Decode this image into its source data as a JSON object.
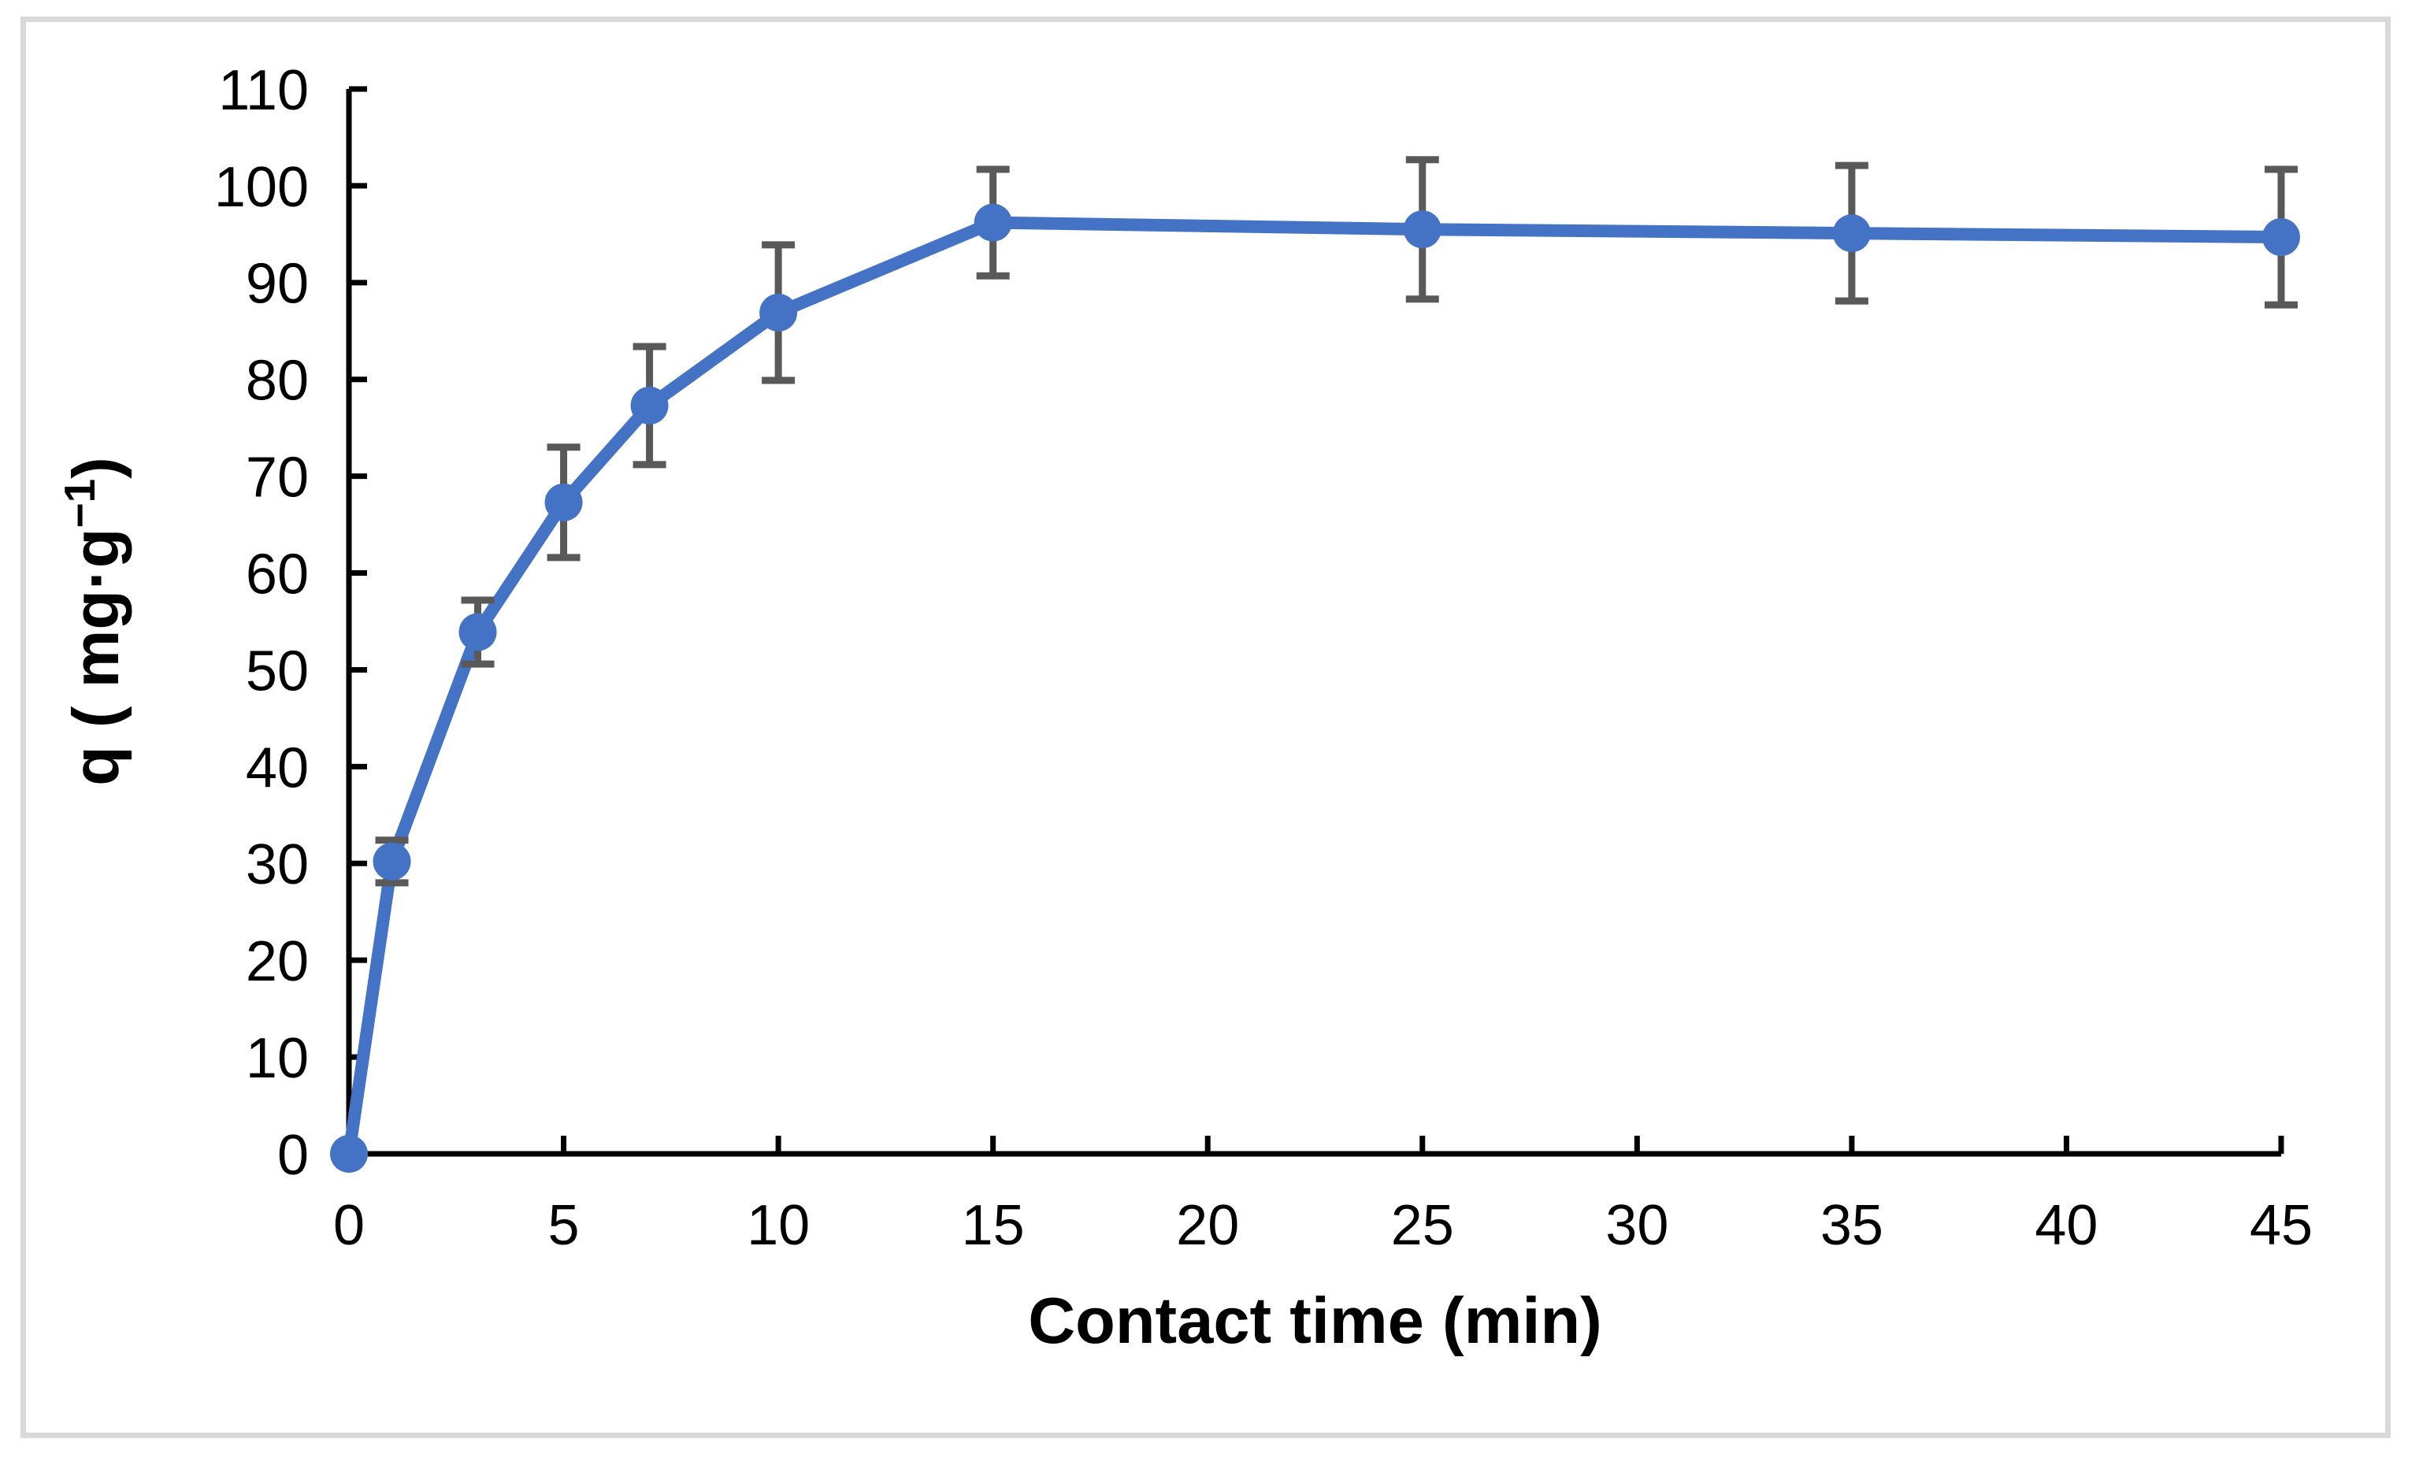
{
  "chart_data": {
    "type": "line",
    "title": "",
    "xlabel": "Contact time (min)",
    "ylabel": {
      "prefix": "q ( mg·g",
      "superscript": "−1",
      "suffix": ")"
    },
    "x": [
      0,
      1,
      3,
      5,
      7,
      10,
      15,
      25,
      35,
      45
    ],
    "series": [
      {
        "name": "q",
        "values": [
          0,
          30.2,
          53.9,
          67.3,
          77.3,
          86.9,
          96.2,
          95.5,
          95.1,
          94.7
        ],
        "errors": [
          0,
          2.2,
          3.3,
          5.7,
          6.1,
          7.0,
          5.5,
          7.2,
          7.0,
          7.0
        ]
      }
    ],
    "xlim": [
      0,
      45
    ],
    "ylim": [
      0,
      110
    ],
    "x_ticks": [
      0,
      5,
      10,
      15,
      20,
      25,
      30,
      35,
      40,
      45
    ],
    "y_ticks": [
      0,
      10,
      20,
      30,
      40,
      50,
      60,
      70,
      80,
      90,
      100,
      110
    ],
    "grid": false,
    "legend_position": "none",
    "marker": "circle",
    "colors": {
      "line": "#4472C4",
      "marker": "#4472C4",
      "error_bar": "#595959",
      "axis": "#000000",
      "text": "#000000",
      "figure_border": "#D9D9D9",
      "background": "#FFFFFF"
    }
  }
}
